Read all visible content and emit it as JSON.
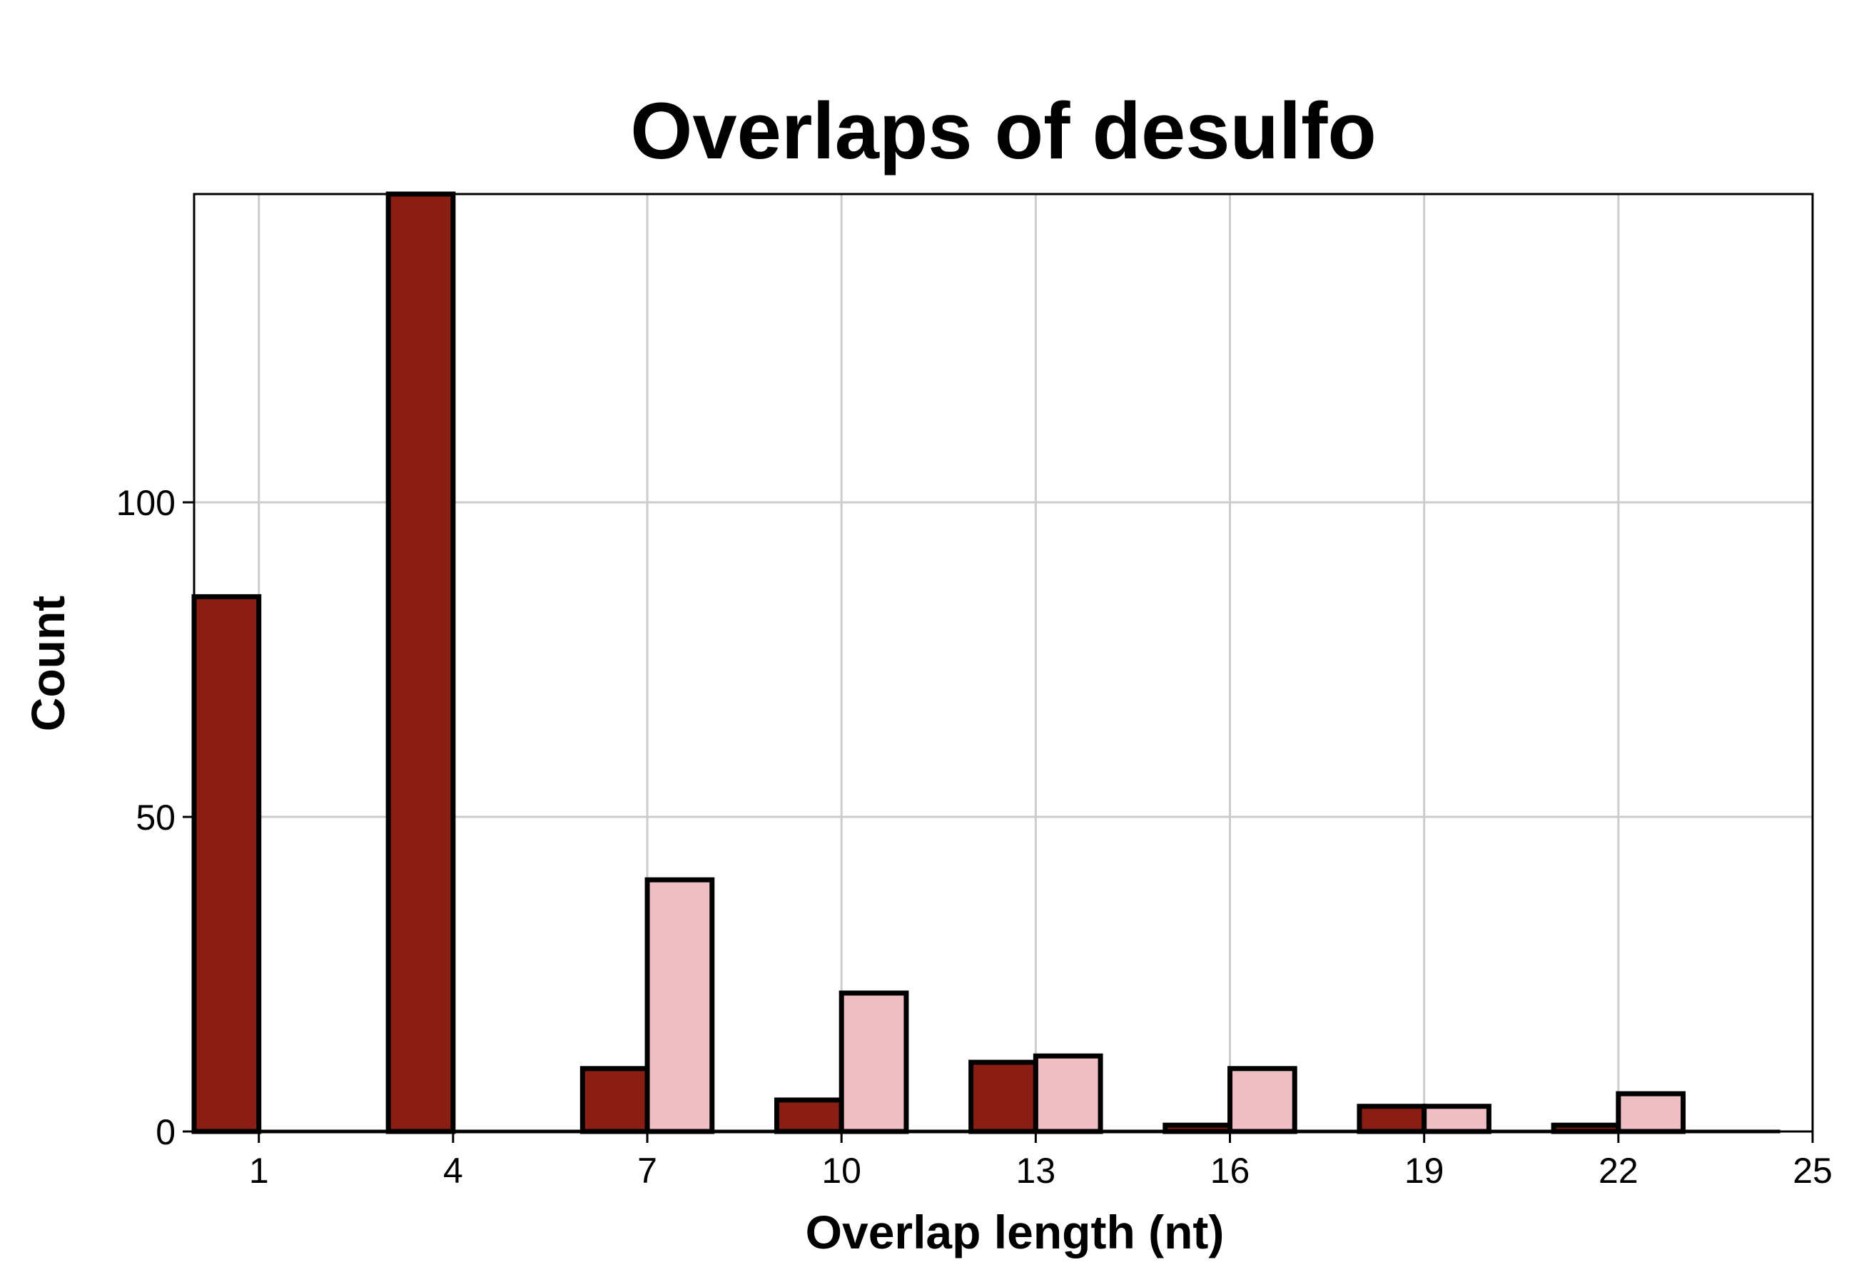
{
  "chart_data": {
    "type": "bar",
    "title": "Overlaps of desulfo",
    "xlabel": "Overlap length (nt)",
    "ylabel": "Count",
    "xlim": [
      0,
      25
    ],
    "ylim": [
      0,
      149
    ],
    "x_ticks": [
      1,
      4,
      7,
      10,
      13,
      16,
      19,
      22,
      25
    ],
    "y_ticks": [
      0,
      50,
      100
    ],
    "grid": true,
    "legend": "none",
    "series": [
      {
        "color": "#8b1e14",
        "x": [
          1,
          2,
          3,
          4,
          5,
          6,
          7,
          8,
          9,
          10,
          11,
          12,
          13,
          14,
          15,
          16,
          17,
          18,
          19,
          20,
          21,
          22,
          23,
          24
        ],
        "values": [
          85,
          0,
          0,
          149,
          0,
          0,
          10,
          0,
          0,
          5,
          0,
          0,
          11,
          0,
          0,
          1,
          0,
          0,
          4,
          0,
          0,
          1,
          0,
          0
        ]
      },
      {
        "color": "#efbec2",
        "x": [
          1,
          2,
          3,
          4,
          5,
          6,
          7,
          8,
          9,
          10,
          11,
          12,
          13,
          14,
          15,
          16,
          17,
          18,
          19,
          20,
          21,
          22,
          23,
          24
        ],
        "values": [
          0,
          0,
          0,
          0,
          0,
          0,
          0,
          40,
          0,
          0,
          22,
          0,
          0,
          12,
          0,
          0,
          10,
          0,
          0,
          4,
          0,
          0,
          6,
          0
        ]
      }
    ]
  }
}
